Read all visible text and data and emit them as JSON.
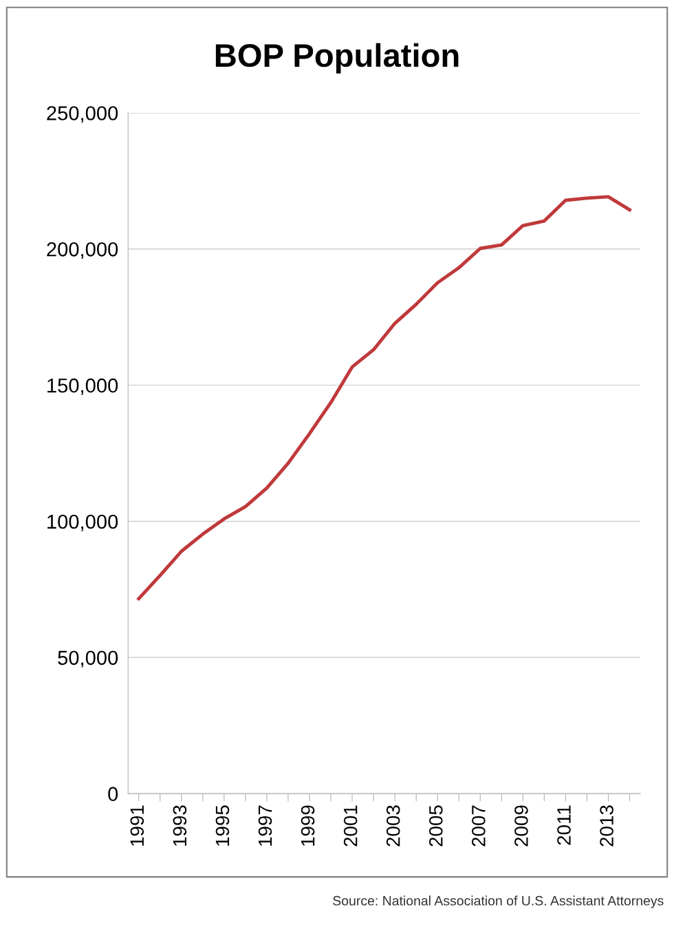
{
  "chart_data": {
    "type": "line",
    "title": "BOP Population",
    "categories": [
      "1991",
      null,
      "1993",
      null,
      "1995",
      null,
      "1997",
      null,
      "1999",
      null,
      "2001",
      null,
      "2003",
      null,
      "2005",
      null,
      "2007",
      null,
      "2009",
      null,
      "2011",
      null,
      "2013",
      null
    ],
    "series": [
      {
        "color": "#c0393b",
        "values": [
          71600,
          80100,
          89000,
          95300,
          100900,
          105400,
          112200,
          121300,
          132200,
          143600,
          156700,
          163000,
          172700,
          179700,
          187600,
          193100,
          200200,
          201500,
          208600,
          210300,
          217900,
          218700,
          219200,
          214400
        ]
      }
    ],
    "ylim": [
      0,
      250000
    ],
    "yticks": [
      0,
      {
        "value": 50000,
        "label": "50,000"
      },
      {
        "value": 100000,
        "label": "100,000"
      },
      {
        "value": 150000,
        "label": "150,000"
      },
      {
        "value": 200000,
        "label": "200,000"
      },
      {
        "value": 250000,
        "label": "250,000"
      }
    ],
    "grid": "y",
    "marker": "none",
    "line_style": "solid",
    "annotations": [
      "Source: National Association of U.S. Assistant Attorneys"
    ]
  }
}
